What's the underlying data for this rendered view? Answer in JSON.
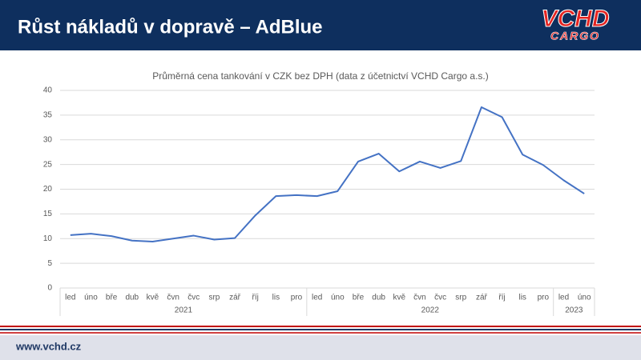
{
  "header": {
    "title": "Růst nákladů v dopravě – AdBlue",
    "logo_top": "VCHD",
    "logo_bottom": "CARGO"
  },
  "footer": {
    "url": "www.vchd.cz"
  },
  "chart_data": {
    "type": "line",
    "title": "Průměrná cena tankování v CZK bez DPH (data z účetnictví VCHD Cargo a.s.)",
    "groups": [
      {
        "label": "2021",
        "categories": [
          "led",
          "úno",
          "bře",
          "dub",
          "kvě",
          "čvn",
          "čvc",
          "srp",
          "zář",
          "říj",
          "lis",
          "pro"
        ]
      },
      {
        "label": "2022",
        "categories": [
          "led",
          "úno",
          "bře",
          "dub",
          "kvě",
          "čvn",
          "čvc",
          "srp",
          "zář",
          "říj",
          "lis",
          "pro"
        ]
      },
      {
        "label": "2023",
        "categories": [
          "led",
          "úno"
        ]
      }
    ],
    "series": [
      {
        "color": "#4472c4",
        "values": [
          10.7,
          11.0,
          10.5,
          9.6,
          9.4,
          10.0,
          10.6,
          9.8,
          10.1,
          14.7,
          18.6,
          18.8,
          18.6,
          19.6,
          25.6,
          27.2,
          23.6,
          25.6,
          24.3,
          25.7,
          36.6,
          34.6,
          27.0,
          24.9,
          21.8,
          19.1
        ]
      }
    ],
    "ylim": [
      0,
      40
    ],
    "yticks": [
      0,
      5,
      10,
      15,
      20,
      25,
      30,
      35,
      40
    ],
    "grid": true
  }
}
